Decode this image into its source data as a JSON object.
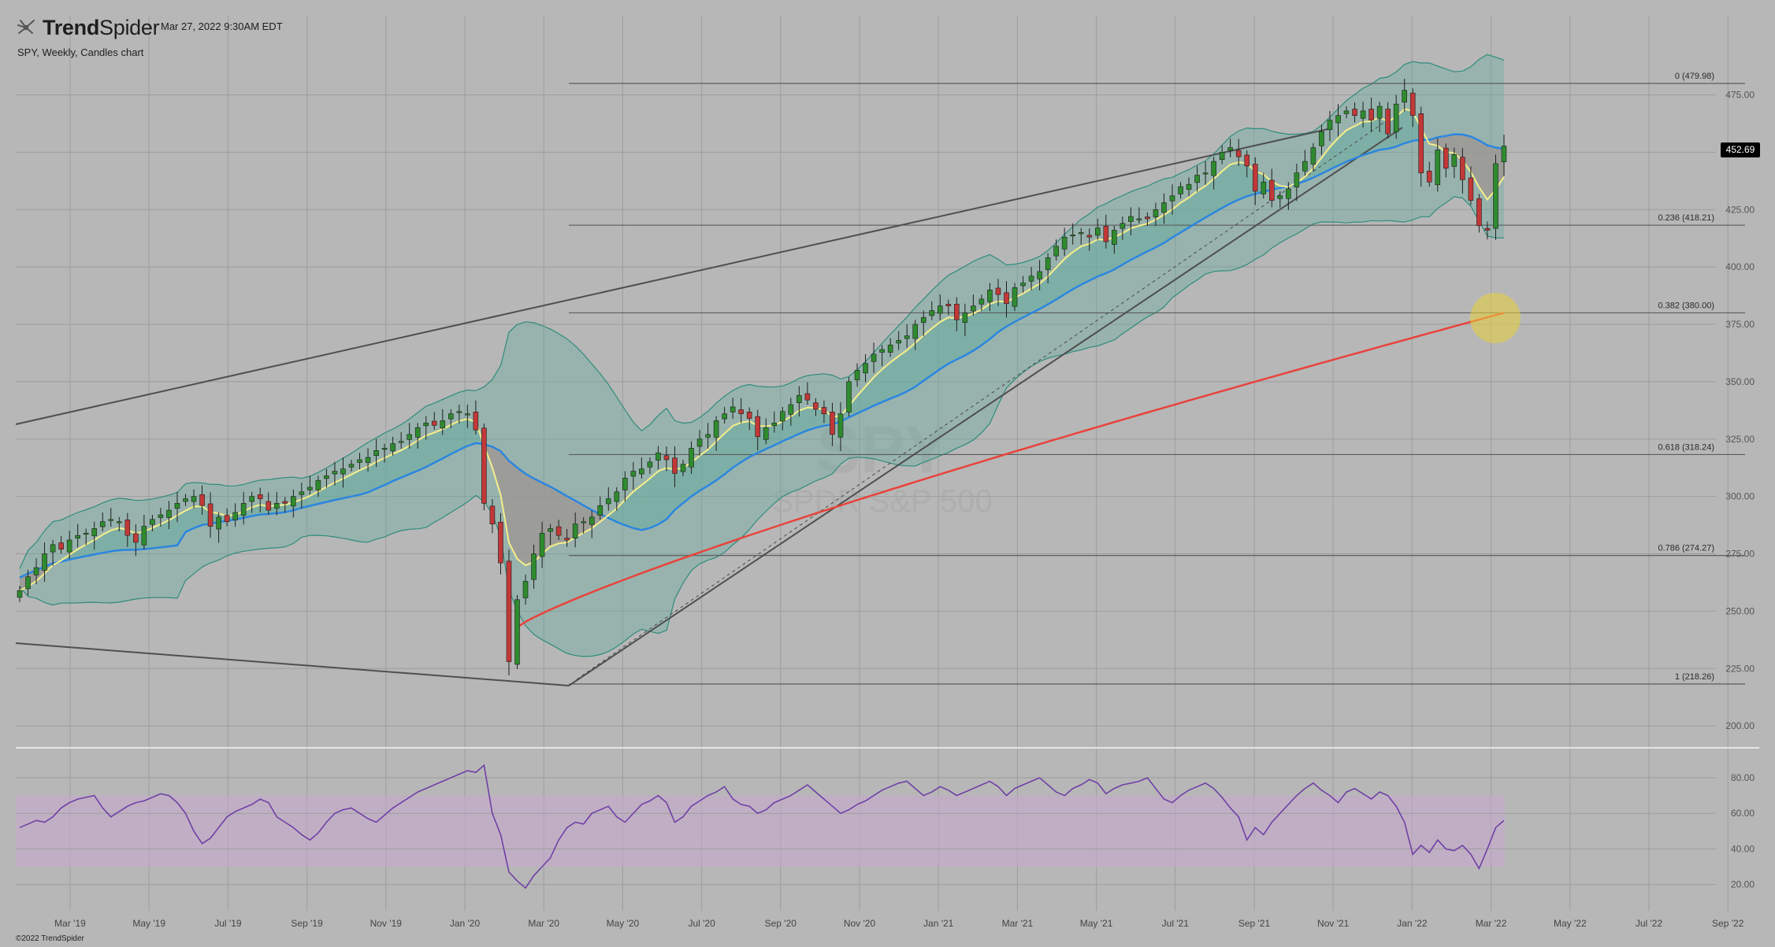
{
  "header": {
    "brand_prefix": "Trend",
    "brand_suffix": "Spider",
    "datetime": "Mar 27, 2022 9:30AM EDT",
    "subtitle": "SPY, Weekly, Candles chart",
    "copyright": "©2022 TrendSpider",
    "last_price": "452.69"
  },
  "watermark": {
    "symbol": "SPY",
    "name": "SPDR S&P 500"
  },
  "colors": {
    "background": "#b7b7b7",
    "grid": "#9d9d9d",
    "candle_up": "#2e8b2e",
    "candle_down": "#c23838",
    "ema_fast": "#f5ee8a",
    "ma_medium": "#2b86df",
    "ma_slow": "#e8433b",
    "band_fill": "#5fab9e",
    "band_line": "#2f8c7c",
    "cloud_bear": "#c08a8a",
    "rsi_line": "#7040a6",
    "rsi_band": "#c9a9cf",
    "trendline": "#4f4f4f",
    "highlight": "#e9d23a"
  },
  "chart_data": {
    "type": "candlestick",
    "symbol": "SPY",
    "interval": "Weekly",
    "x_tick_labels": [
      "Mar '19",
      "May '19",
      "Jul '19",
      "Sep '19",
      "Nov '19",
      "Jan '20",
      "Mar '20",
      "May '20",
      "Jul '20",
      "Sep '20",
      "Nov '20",
      "Jan '21",
      "Mar '21",
      "May '21",
      "Jul '21",
      "Sep '21",
      "Nov '21",
      "Jan '22",
      "Mar '22",
      "May '22",
      "Jul '22",
      "Sep '22"
    ],
    "y_tick_labels": [
      "475.00",
      "450.00",
      "425.00",
      "400.00",
      "375.00",
      "350.00",
      "325.00",
      "300.00",
      "275.00",
      "250.00",
      "225.00",
      "200.00"
    ],
    "y_ticks": [
      475,
      450,
      425,
      400,
      375,
      350,
      325,
      300,
      275,
      250,
      225,
      200
    ],
    "ylim": [
      193,
      514
    ],
    "fibonacci": [
      {
        "label": "0 (479.98)",
        "price": 479.98
      },
      {
        "label": "0.236 (418.21)",
        "price": 418.21
      },
      {
        "label": "0.382 (380.00)",
        "price": 380.0
      },
      {
        "label": "0.618 (318.24)",
        "price": 318.24
      },
      {
        "label": "0.786 (274.27)",
        "price": 274.27
      },
      {
        "label": "1 (218.26)",
        "price": 218.26
      }
    ],
    "weekly_close": [
      259,
      265,
      269,
      275,
      279,
      277,
      281,
      283,
      284,
      286,
      289,
      290,
      289,
      283,
      280,
      287,
      290,
      292,
      294,
      297,
      299,
      300,
      296,
      287,
      291,
      289,
      293,
      297,
      300,
      299,
      294,
      297,
      297,
      300,
      302,
      304,
      307,
      309,
      311,
      312,
      314,
      316,
      317,
      320,
      321,
      323,
      324,
      327,
      330,
      332,
      331,
      333,
      336,
      337,
      336,
      329,
      297,
      288,
      271,
      228,
      255,
      263,
      275,
      284,
      286,
      283,
      281,
      288,
      289,
      291,
      296,
      299,
      302,
      308,
      311,
      312,
      315,
      319,
      316,
      310,
      314,
      321,
      325,
      327,
      333,
      336,
      339,
      336,
      334,
      326,
      330,
      332,
      337,
      340,
      344,
      342,
      338,
      336,
      327,
      336,
      350,
      355,
      358,
      362,
      364,
      366,
      368,
      370,
      375,
      378,
      381,
      383,
      383,
      377,
      380,
      383,
      386,
      390,
      388,
      384,
      391,
      393,
      396,
      398,
      404,
      409,
      413,
      414,
      415,
      413,
      417,
      411,
      416,
      419,
      422,
      421,
      421,
      425,
      428,
      431,
      435,
      436,
      440,
      441,
      446,
      450,
      452,
      448,
      444,
      433,
      437,
      429,
      431,
      434,
      441,
      446,
      452,
      459,
      464,
      466,
      468,
      466,
      468,
      464,
      470,
      458,
      471,
      477,
      466,
      441,
      437,
      451,
      443,
      449,
      438,
      429,
      418,
      416,
      445,
      452.69
    ],
    "rsi_ticks": [
      "80.00",
      "60.00",
      "40.00",
      "20.00"
    ],
    "rsi": [
      52,
      54,
      56,
      55,
      58,
      63,
      66,
      68,
      69,
      70,
      63,
      58,
      61,
      64,
      66,
      67,
      69,
      71,
      70,
      66,
      60,
      50,
      43,
      46,
      52,
      58,
      61,
      63,
      65,
      68,
      66,
      58,
      55,
      52,
      48,
      45,
      49,
      55,
      60,
      62,
      63,
      60,
      57,
      55,
      59,
      63,
      66,
      69,
      72,
      74,
      76,
      78,
      80,
      82,
      84,
      83,
      87,
      60,
      48,
      27,
      22,
      18,
      25,
      30,
      35,
      45,
      52,
      55,
      54,
      60,
      62,
      64,
      58,
      55,
      60,
      65,
      67,
      70,
      66,
      55,
      58,
      64,
      67,
      70,
      72,
      75,
      68,
      65,
      64,
      60,
      62,
      66,
      68,
      70,
      73,
      76,
      72,
      68,
      64,
      60,
      62,
      65,
      67,
      70,
      73,
      75,
      77,
      78,
      74,
      70,
      72,
      75,
      73,
      70,
      72,
      74,
      76,
      78,
      75,
      70,
      74,
      76,
      78,
      80,
      76,
      72,
      70,
      74,
      76,
      79,
      77,
      71,
      74,
      76,
      77,
      78,
      80,
      74,
      68,
      66,
      70,
      73,
      75,
      77,
      74,
      69,
      63,
      58,
      45,
      52,
      48,
      55,
      60,
      65,
      70,
      74,
      77,
      73,
      70,
      66,
      72,
      74,
      71,
      68,
      72,
      70,
      64,
      55,
      37,
      42,
      38,
      45,
      40,
      39,
      42,
      37,
      29,
      40,
      52,
      56
    ],
    "series": [
      {
        "name": "SPY"
      }
    ]
  }
}
